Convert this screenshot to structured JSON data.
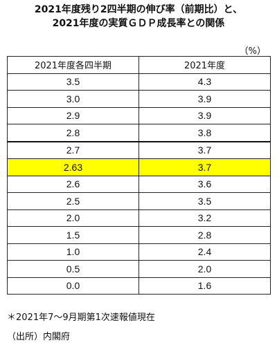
{
  "title": {
    "line1": "2021年度残り2四半期の伸び率（前期比）と、",
    "line2": "2021年度の実質ＧＤＰ成長率との関係"
  },
  "unit": "（%）",
  "table": {
    "headers": [
      "2021年度各四半期",
      "2021年度"
    ],
    "rows": [
      {
        "q": "3.5",
        "fy": "4.3"
      },
      {
        "q": "3.0",
        "fy": "3.9"
      },
      {
        "q": "2.9",
        "fy": "3.9"
      },
      {
        "q": "2.8",
        "fy": "3.8"
      },
      {
        "q": "2.7",
        "fy": "3.7"
      },
      {
        "q": "2.63",
        "fy": "3.7"
      },
      {
        "q": "2.6",
        "fy": "3.6"
      },
      {
        "q": "2.5",
        "fy": "3.5"
      },
      {
        "q": "2.0",
        "fy": "3.2"
      },
      {
        "q": "1.5",
        "fy": "2.8"
      },
      {
        "q": "1.0",
        "fy": "2.4"
      },
      {
        "q": "0.5",
        "fy": "2.0"
      },
      {
        "q": "0.0",
        "fy": "1.6"
      }
    ],
    "highlight_color": "#ffff00"
  },
  "note": "＊2021年7～9月期第1次速報値現在",
  "source": "（出所）内閣府"
}
